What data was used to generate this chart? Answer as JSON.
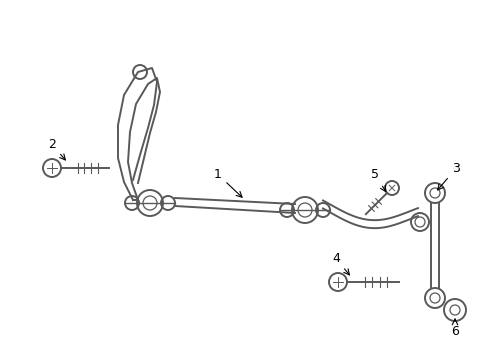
{
  "bg_color": "#ffffff",
  "line_color": "#595959",
  "figsize": [
    4.9,
    3.6
  ],
  "dpi": 100
}
